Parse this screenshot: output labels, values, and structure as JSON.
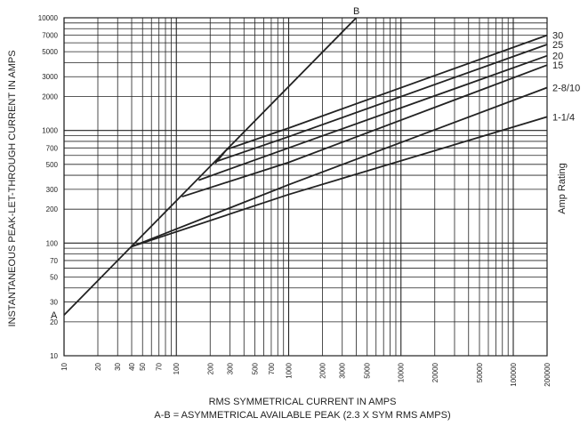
{
  "chart_data": {
    "type": "line",
    "xscale": "log",
    "yscale": "log",
    "xlim": [
      10,
      200000
    ],
    "ylim": [
      10,
      10000
    ],
    "grid": true,
    "xlabel": "RMS SYMMETRICAL CURRENT IN AMPS",
    "xlabel_note": "A-B = ASYMMETRICAL AVAILABLE PEAK (2.3 X SYM RMS AMPS)",
    "ylabel": "INSTANTANEOUS PEAK-LET-THROUGH CURRENT IN AMPS",
    "right_label": "Amp Rating",
    "xticks": [
      "10",
      "20",
      "30",
      "40",
      "50",
      "70",
      "100",
      "200",
      "300",
      "500",
      "700",
      "1000",
      "2000",
      "3000",
      "5000",
      "10000",
      "20000",
      "50000",
      "100000",
      "200000"
    ],
    "xtick_values": [
      10,
      20,
      30,
      40,
      50,
      70,
      100,
      200,
      300,
      500,
      700,
      1000,
      2000,
      3000,
      5000,
      10000,
      20000,
      50000,
      100000,
      200000
    ],
    "yticks": [
      "10",
      "20",
      "30",
      "50",
      "70",
      "100",
      "200",
      "300",
      "500",
      "700",
      "1000",
      "2000",
      "3000",
      "5000",
      "7000",
      "10000"
    ],
    "ytick_values": [
      10,
      20,
      30,
      50,
      70,
      100,
      200,
      300,
      500,
      700,
      1000,
      2000,
      3000,
      5000,
      7000,
      10000
    ],
    "ab_line": {
      "start_label": "A",
      "end_label": "B",
      "points": [
        [
          10,
          23
        ],
        [
          4000,
          10000
        ]
      ]
    },
    "series": [
      {
        "name": "30",
        "points": [
          [
            222,
            510
          ],
          [
            282,
            680
          ],
          [
            1000,
            1050
          ],
          [
            200000,
            7000
          ]
        ]
      },
      {
        "name": "25",
        "points": [
          [
            232,
            535
          ],
          [
            1000,
            880
          ],
          [
            200000,
            5800
          ]
        ]
      },
      {
        "name": "20",
        "points": [
          [
            158,
            362
          ],
          [
            1000,
            700
          ],
          [
            200000,
            4600
          ]
        ]
      },
      {
        "name": "15",
        "points": [
          [
            112,
            258
          ],
          [
            1000,
            520
          ],
          [
            200000,
            3800
          ]
        ]
      },
      {
        "name": "2-8/10",
        "points": [
          [
            40,
            93
          ],
          [
            1000,
            330
          ],
          [
            200000,
            2400
          ]
        ]
      },
      {
        "name": "1-1/4",
        "points": [
          [
            40,
            93
          ],
          [
            1000,
            270
          ],
          [
            200000,
            1320
          ]
        ]
      }
    ]
  }
}
